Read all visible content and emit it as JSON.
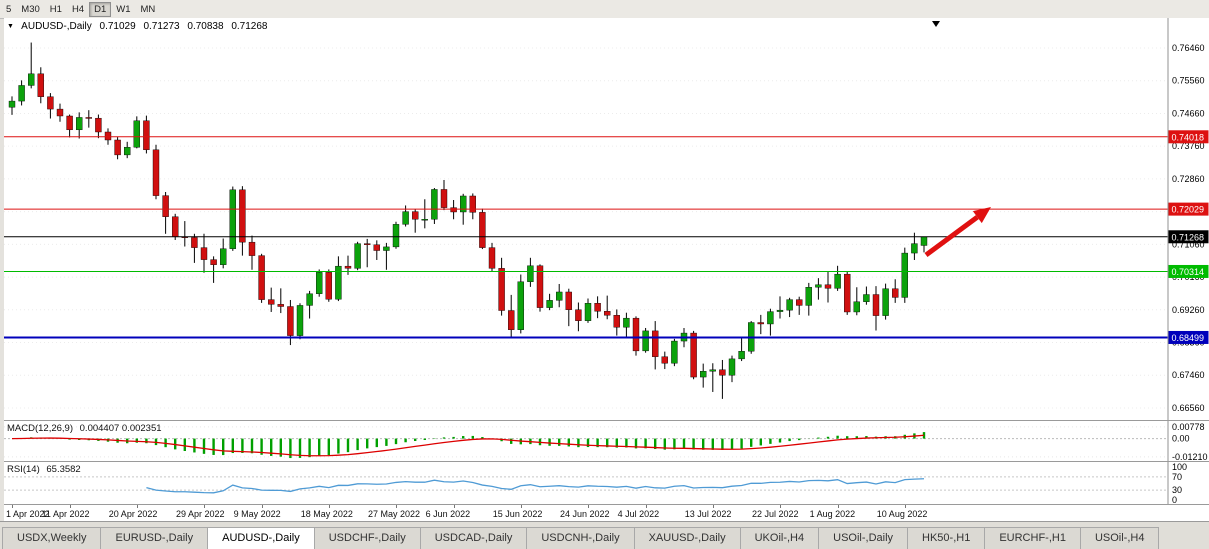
{
  "toolbar": {
    "timeframes": [
      "5",
      "M30",
      "H1",
      "H4",
      "D1",
      "W1",
      "MN"
    ],
    "active": "D1"
  },
  "chart": {
    "marker": "▼",
    "title": "AUDUSD-,Daily",
    "open": "0.71029",
    "high": "0.71273",
    "low": "0.70838",
    "close": "0.71268"
  },
  "chart_data": {
    "type": "candlestick",
    "symbol": "AUDUSD",
    "timeframe": "Daily",
    "dates": [
      "2022-04-01",
      "2022-04-04",
      "2022-04-05",
      "2022-04-06",
      "2022-04-07",
      "2022-04-08",
      "2022-04-11",
      "2022-04-12",
      "2022-04-13",
      "2022-04-14",
      "2022-04-15",
      "2022-04-18",
      "2022-04-19",
      "2022-04-20",
      "2022-04-21",
      "2022-04-22",
      "2022-04-25",
      "2022-04-26",
      "2022-04-27",
      "2022-04-28",
      "2022-04-29",
      "2022-05-02",
      "2022-05-03",
      "2022-05-04",
      "2022-05-05",
      "2022-05-06",
      "2022-05-09",
      "2022-05-10",
      "2022-05-11",
      "2022-05-12",
      "2022-05-13",
      "2022-05-16",
      "2022-05-17",
      "2022-05-18",
      "2022-05-19",
      "2022-05-20",
      "2022-05-23",
      "2022-05-24",
      "2022-05-25",
      "2022-05-26",
      "2022-05-27",
      "2022-05-30",
      "2022-05-31",
      "2022-06-01",
      "2022-06-02",
      "2022-06-03",
      "2022-06-06",
      "2022-06-07",
      "2022-06-08",
      "2022-06-09",
      "2022-06-10",
      "2022-06-13",
      "2022-06-14",
      "2022-06-15",
      "2022-06-16",
      "2022-06-17",
      "2022-06-20",
      "2022-06-21",
      "2022-06-22",
      "2022-06-23",
      "2022-06-24",
      "2022-06-27",
      "2022-06-28",
      "2022-06-29",
      "2022-06-30",
      "2022-07-01",
      "2022-07-04",
      "2022-07-05",
      "2022-07-06",
      "2022-07-07",
      "2022-07-08",
      "2022-07-11",
      "2022-07-12",
      "2022-07-13",
      "2022-07-14",
      "2022-07-15",
      "2022-07-18",
      "2022-07-19",
      "2022-07-20",
      "2022-07-21",
      "2022-07-22",
      "2022-07-25",
      "2022-07-26",
      "2022-07-27",
      "2022-07-28",
      "2022-07-29",
      "2022-08-01",
      "2022-08-02",
      "2022-08-03",
      "2022-08-04",
      "2022-08-05",
      "2022-08-08",
      "2022-08-09",
      "2022-08-10",
      "2022-08-11",
      "2022-08-12"
    ],
    "candles": [
      [
        0.7483,
        0.7513,
        0.7462,
        0.75
      ],
      [
        0.75,
        0.7557,
        0.7488,
        0.7543
      ],
      [
        0.7543,
        0.7661,
        0.7535,
        0.7575
      ],
      [
        0.7575,
        0.7593,
        0.7494,
        0.7512
      ],
      [
        0.7512,
        0.7522,
        0.7452,
        0.7478
      ],
      [
        0.7478,
        0.7493,
        0.7443,
        0.7459
      ],
      [
        0.7459,
        0.7463,
        0.74,
        0.7421
      ],
      [
        0.7421,
        0.7469,
        0.7397,
        0.7455
      ],
      [
        0.7455,
        0.7475,
        0.7427,
        0.7453
      ],
      [
        0.7453,
        0.7463,
        0.7398,
        0.7415
      ],
      [
        0.7415,
        0.7425,
        0.738,
        0.7393
      ],
      [
        0.7393,
        0.7401,
        0.734,
        0.7352
      ],
      [
        0.7352,
        0.7388,
        0.7343,
        0.7373
      ],
      [
        0.7373,
        0.7458,
        0.737,
        0.7446
      ],
      [
        0.7446,
        0.746,
        0.7356,
        0.7366
      ],
      [
        0.7366,
        0.738,
        0.723,
        0.724
      ],
      [
        0.724,
        0.725,
        0.7135,
        0.7182
      ],
      [
        0.7182,
        0.719,
        0.7118,
        0.7127
      ],
      [
        0.7127,
        0.717,
        0.71,
        0.7125
      ],
      [
        0.7125,
        0.7135,
        0.7055,
        0.7097
      ],
      [
        0.7097,
        0.7135,
        0.7028,
        0.7064
      ],
      [
        0.7064,
        0.7073,
        0.7,
        0.705
      ],
      [
        0.705,
        0.7122,
        0.704,
        0.7094
      ],
      [
        0.7094,
        0.7265,
        0.7088,
        0.7256
      ],
      [
        0.7256,
        0.7266,
        0.7075,
        0.7112
      ],
      [
        0.7112,
        0.713,
        0.7036,
        0.7075
      ],
      [
        0.7075,
        0.708,
        0.6945,
        0.6954
      ],
      [
        0.6954,
        0.6987,
        0.692,
        0.6941
      ],
      [
        0.6941,
        0.6985,
        0.6917,
        0.6935
      ],
      [
        0.6935,
        0.6953,
        0.6829,
        0.6855
      ],
      [
        0.6855,
        0.6944,
        0.6845,
        0.6938
      ],
      [
        0.6938,
        0.6978,
        0.6902,
        0.697
      ],
      [
        0.697,
        0.7037,
        0.6962,
        0.7029
      ],
      [
        0.7029,
        0.7037,
        0.6948,
        0.6955
      ],
      [
        0.6955,
        0.7073,
        0.695,
        0.7046
      ],
      [
        0.7046,
        0.7075,
        0.7022,
        0.704
      ],
      [
        0.704,
        0.7113,
        0.7035,
        0.7108
      ],
      [
        0.7108,
        0.7121,
        0.7043,
        0.7105
      ],
      [
        0.7105,
        0.7117,
        0.7063,
        0.7089
      ],
      [
        0.7089,
        0.711,
        0.7036,
        0.7099
      ],
      [
        0.7099,
        0.7168,
        0.7094,
        0.7161
      ],
      [
        0.7161,
        0.7213,
        0.7155,
        0.7196
      ],
      [
        0.7196,
        0.7203,
        0.7138,
        0.7175
      ],
      [
        0.7175,
        0.723,
        0.715,
        0.7175
      ],
      [
        0.7175,
        0.7261,
        0.7162,
        0.7257
      ],
      [
        0.7257,
        0.7283,
        0.72,
        0.7207
      ],
      [
        0.7207,
        0.7228,
        0.7175,
        0.7195
      ],
      [
        0.7195,
        0.7245,
        0.716,
        0.7239
      ],
      [
        0.7239,
        0.7246,
        0.7175,
        0.7194
      ],
      [
        0.7194,
        0.7204,
        0.7093,
        0.7097
      ],
      [
        0.7097,
        0.711,
        0.7031,
        0.704
      ],
      [
        0.704,
        0.7069,
        0.691,
        0.6924
      ],
      [
        0.6924,
        0.6967,
        0.685,
        0.6871
      ],
      [
        0.6871,
        0.7023,
        0.6861,
        0.7003
      ],
      [
        0.7003,
        0.7069,
        0.6989,
        0.7047
      ],
      [
        0.7047,
        0.7051,
        0.6921,
        0.6932
      ],
      [
        0.6932,
        0.697,
        0.6925,
        0.6952
      ],
      [
        0.6952,
        0.6997,
        0.6933,
        0.6975
      ],
      [
        0.6975,
        0.6984,
        0.6881,
        0.6926
      ],
      [
        0.6926,
        0.6946,
        0.6867,
        0.6896
      ],
      [
        0.6896,
        0.6957,
        0.689,
        0.6944
      ],
      [
        0.6944,
        0.6963,
        0.6903,
        0.6922
      ],
      [
        0.6922,
        0.6965,
        0.69,
        0.6911
      ],
      [
        0.6911,
        0.6927,
        0.6855,
        0.6878
      ],
      [
        0.6878,
        0.6918,
        0.685,
        0.6903
      ],
      [
        0.6903,
        0.6908,
        0.68,
        0.6813
      ],
      [
        0.6813,
        0.6876,
        0.6808,
        0.6868
      ],
      [
        0.6868,
        0.6895,
        0.6762,
        0.6797
      ],
      [
        0.6797,
        0.6811,
        0.6763,
        0.6779
      ],
      [
        0.6779,
        0.6846,
        0.6771,
        0.684
      ],
      [
        0.684,
        0.6876,
        0.6823,
        0.6862
      ],
      [
        0.6862,
        0.6868,
        0.6735,
        0.6741
      ],
      [
        0.6741,
        0.6778,
        0.6712,
        0.6757
      ],
      [
        0.6757,
        0.6779,
        0.67,
        0.6761
      ],
      [
        0.6761,
        0.6788,
        0.6681,
        0.6746
      ],
      [
        0.6746,
        0.68,
        0.6727,
        0.6791
      ],
      [
        0.6791,
        0.6849,
        0.6785,
        0.6812
      ],
      [
        0.6812,
        0.6895,
        0.6805,
        0.6891
      ],
      [
        0.6891,
        0.6912,
        0.6859,
        0.6887
      ],
      [
        0.6887,
        0.6929,
        0.6855,
        0.6921
      ],
      [
        0.6921,
        0.6963,
        0.6902,
        0.6925
      ],
      [
        0.6925,
        0.6959,
        0.6906,
        0.6954
      ],
      [
        0.6954,
        0.6962,
        0.6912,
        0.6938
      ],
      [
        0.6938,
        0.7,
        0.691,
        0.6988
      ],
      [
        0.6988,
        0.7013,
        0.6954,
        0.6995
      ],
      [
        0.6995,
        0.7032,
        0.6946,
        0.6985
      ],
      [
        0.6985,
        0.7047,
        0.6978,
        0.7024
      ],
      [
        0.7024,
        0.7031,
        0.6912,
        0.692
      ],
      [
        0.692,
        0.6988,
        0.6911,
        0.6948
      ],
      [
        0.6948,
        0.699,
        0.694,
        0.6968
      ],
      [
        0.6968,
        0.6991,
        0.6869,
        0.691
      ],
      [
        0.691,
        0.6998,
        0.6899,
        0.6984
      ],
      [
        0.6984,
        0.701,
        0.6945,
        0.696
      ],
      [
        0.696,
        0.7097,
        0.6945,
        0.7082
      ],
      [
        0.7082,
        0.7138,
        0.7063,
        0.7108
      ],
      [
        0.71029,
        0.71273,
        0.70838,
        0.71268
      ]
    ],
    "x_tick_indices": [
      0,
      6,
      13,
      20,
      26,
      33,
      40,
      46,
      53,
      60,
      66,
      73,
      80,
      86,
      93
    ],
    "x_tick_labels": [
      "1 Apr 2022",
      "11 Apr 2022",
      "20 Apr 2022",
      "29 Apr 2022",
      "9 May 2022",
      "18 May 2022",
      "27 May 2022",
      "6 Jun 2022",
      "15 Jun 2022",
      "24 Jun 2022",
      "4 Jul 2022",
      "13 Jul 2022",
      "22 Jul 2022",
      "1 Aug 2022",
      "10 Aug 2022"
    ],
    "y_ticks": [
      "0.76460",
      "0.75560",
      "0.74660",
      "0.73760",
      "0.72860",
      "0.71960",
      "0.71060",
      "0.70160",
      "0.69260",
      "0.68360",
      "0.67460",
      "0.66560"
    ],
    "hlines": [
      {
        "price": 0.74018,
        "label": "0.74018",
        "color": "#dd1111",
        "width": 1
      },
      {
        "price": 0.72029,
        "label": "0.72029",
        "color": "#dd1111",
        "width": 1
      },
      {
        "price": 0.71268,
        "label": "0.71268",
        "color": "#000000",
        "width": 1
      },
      {
        "price": 0.70314,
        "label": "0.70314",
        "color": "#00bb00",
        "width": 1
      },
      {
        "price": 0.68499,
        "label": "0.68499",
        "color": "#0000bb",
        "width": 2
      }
    ],
    "current_price": 0.71268,
    "annotation": {
      "type": "up-arrow",
      "color": "#e01010",
      "tail": [
        922,
        237
      ],
      "tip": [
        987,
        189
      ]
    }
  },
  "macd": {
    "name": "MACD(12,26,9)",
    "values": "0.004407 0.002351",
    "ticks": [
      "0.00778",
      "0.00",
      "-0.01210"
    ],
    "fast": 12,
    "slow": 26,
    "signal": 9
  },
  "rsi": {
    "name": "RSI(14)",
    "value": "65.3582",
    "period": 14,
    "ticks": [
      "100",
      "70",
      "30",
      "0"
    ]
  },
  "tabs": {
    "items": [
      "USDX,Weekly",
      "EURUSD-,Daily",
      "AUDUSD-,Daily",
      "USDCHF-,Daily",
      "USDCAD-,Daily",
      "USDCNH-,Daily",
      "XAUUSD-,Daily",
      "UKOil-,H4",
      "USOil-,Daily",
      "HK50-,H1",
      "EURCHF-,H1",
      "USOil-,H4"
    ],
    "active_index": 2
  },
  "colors": {
    "bull": "#0ca20c",
    "bear": "#d01010",
    "wick": "#000000",
    "macd_hist": "#00a000",
    "macd_signal": "#dd0000",
    "rsi_line": "#4f9bd5",
    "grid": "#ececec",
    "axis_line": "#909090"
  }
}
